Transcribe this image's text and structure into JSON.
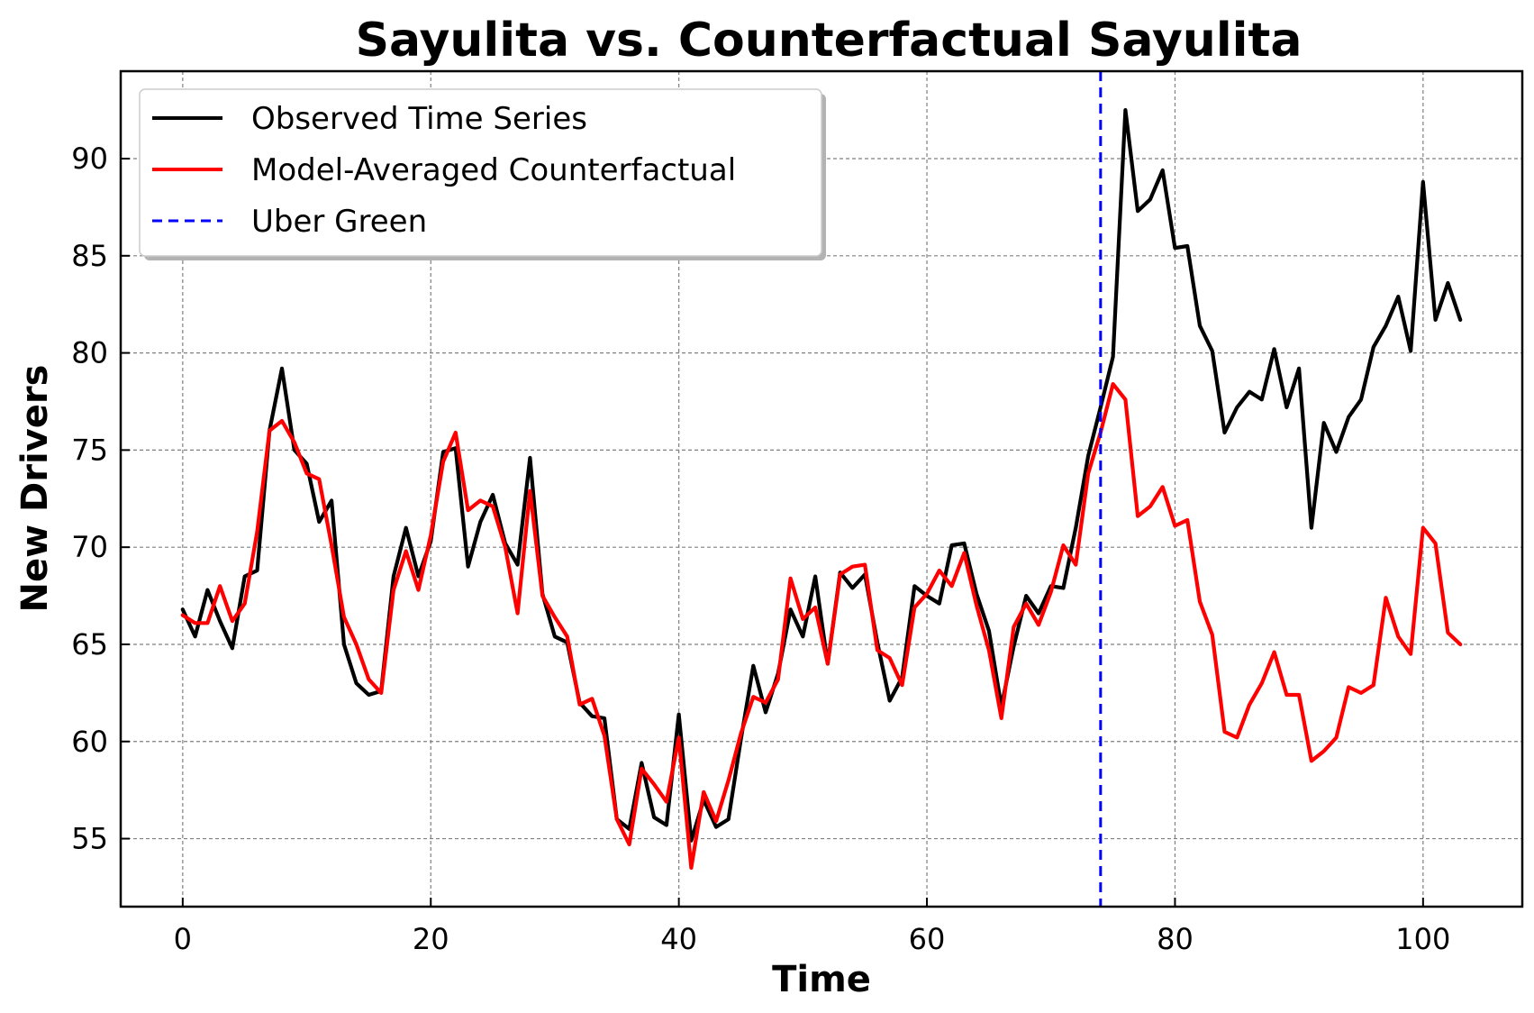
{
  "chart_data": {
    "type": "line",
    "title": "Sayulita vs. Counterfactual Sayulita",
    "xlabel": "Time",
    "ylabel": "New Drivers",
    "xlim": [
      -5,
      108
    ],
    "ylim": [
      51.5,
      94.5
    ],
    "xticks": [
      0,
      20,
      40,
      60,
      80,
      100
    ],
    "yticks": [
      55,
      60,
      65,
      70,
      75,
      80,
      85,
      90
    ],
    "grid": true,
    "legend_position": "upper-left",
    "series": [
      {
        "name": "Observed Time Series",
        "color": "#000000",
        "style": "solid",
        "x": [
          0,
          1,
          2,
          3,
          4,
          5,
          6,
          7,
          8,
          9,
          10,
          11,
          12,
          13,
          14,
          15,
          16,
          17,
          18,
          19,
          20,
          21,
          22,
          23,
          24,
          25,
          26,
          27,
          28,
          29,
          30,
          31,
          32,
          33,
          34,
          35,
          36,
          37,
          38,
          39,
          40,
          41,
          42,
          43,
          44,
          45,
          46,
          47,
          48,
          49,
          50,
          51,
          52,
          53,
          54,
          55,
          56,
          57,
          58,
          59,
          60,
          61,
          62,
          63,
          64,
          65,
          66,
          67,
          68,
          69,
          70,
          71,
          72,
          73,
          74,
          75,
          76,
          77,
          78,
          79,
          80,
          81,
          82,
          83,
          84,
          85,
          86,
          87,
          88,
          89,
          90,
          91,
          92,
          93,
          94,
          95,
          96,
          97,
          98,
          99,
          100,
          101,
          102,
          103
        ],
        "values": [
          66.8,
          65.4,
          67.8,
          66.2,
          64.8,
          68.5,
          68.8,
          76.0,
          79.2,
          75.0,
          74.3,
          71.3,
          72.4,
          65.0,
          63.0,
          62.4,
          62.6,
          68.5,
          71.0,
          68.5,
          70.3,
          74.9,
          75.1,
          69.0,
          71.3,
          72.7,
          70.2,
          69.1,
          74.6,
          67.6,
          65.4,
          65.1,
          62.0,
          61.3,
          61.2,
          56.0,
          55.5,
          58.9,
          56.1,
          55.7,
          61.4,
          54.9,
          57.0,
          55.6,
          56.0,
          60.1,
          63.9,
          61.5,
          63.5,
          66.8,
          65.4,
          68.5,
          64.0,
          68.7,
          67.9,
          68.6,
          65.1,
          62.1,
          63.3,
          68.0,
          67.5,
          67.1,
          70.1,
          70.2,
          67.6,
          65.7,
          61.8,
          64.9,
          67.5,
          66.6,
          68.0,
          67.9,
          71.0,
          74.7,
          77.2,
          79.8,
          92.5,
          87.3,
          87.9,
          89.4,
          85.4,
          85.5,
          81.4,
          80.1,
          75.9,
          77.2,
          78.0,
          77.6,
          80.2,
          77.2,
          79.2,
          71.0,
          76.4,
          74.9,
          76.7,
          77.6,
          80.3,
          81.4,
          82.9,
          80.1,
          88.8,
          81.7,
          83.6,
          81.7
        ]
      },
      {
        "name": "Model-Averaged Counterfactual",
        "color": "#ff0000",
        "style": "solid",
        "x": [
          0,
          1,
          2,
          3,
          4,
          5,
          6,
          7,
          8,
          9,
          10,
          11,
          12,
          13,
          14,
          15,
          16,
          17,
          18,
          19,
          20,
          21,
          22,
          23,
          24,
          25,
          26,
          27,
          28,
          29,
          30,
          31,
          32,
          33,
          34,
          35,
          36,
          37,
          38,
          39,
          40,
          41,
          42,
          43,
          44,
          45,
          46,
          47,
          48,
          49,
          50,
          51,
          52,
          53,
          54,
          55,
          56,
          57,
          58,
          59,
          60,
          61,
          62,
          63,
          64,
          65,
          66,
          67,
          68,
          69,
          70,
          71,
          72,
          73,
          74,
          75,
          76,
          77,
          78,
          79,
          80,
          81,
          82,
          83,
          84,
          85,
          86,
          87,
          88,
          89,
          90,
          91,
          92,
          93,
          94,
          95,
          96,
          97,
          98,
          99,
          100,
          101,
          102,
          103
        ],
        "values": [
          66.5,
          66.1,
          66.1,
          68.0,
          66.2,
          67.1,
          70.8,
          76.0,
          76.5,
          75.4,
          73.8,
          73.5,
          70.1,
          66.4,
          65.0,
          63.2,
          62.5,
          67.8,
          69.8,
          67.8,
          70.6,
          74.4,
          75.9,
          71.9,
          72.4,
          72.1,
          70.0,
          66.6,
          72.9,
          67.5,
          66.4,
          65.4,
          61.9,
          62.2,
          60.3,
          56.0,
          54.7,
          58.6,
          57.8,
          56.9,
          60.2,
          53.5,
          57.4,
          55.9,
          58.0,
          60.4,
          62.3,
          62.0,
          63.2,
          68.4,
          66.3,
          66.9,
          64.0,
          68.6,
          69.0,
          69.1,
          64.7,
          64.3,
          62.9,
          66.9,
          67.6,
          68.8,
          68.0,
          69.7,
          67.0,
          64.7,
          61.2,
          65.9,
          67.1,
          66.0,
          67.7,
          70.1,
          69.1,
          73.8,
          75.9,
          78.4,
          77.6,
          71.6,
          72.1,
          73.1,
          71.1,
          71.4,
          67.2,
          65.5,
          60.5,
          60.2,
          61.9,
          63.0,
          64.6,
          62.4,
          62.4,
          59.0,
          59.5,
          60.2,
          62.8,
          62.5,
          62.9,
          67.4,
          65.4,
          64.5,
          71.0,
          70.2,
          65.6,
          65.0
        ]
      }
    ],
    "vlines": [
      {
        "name": "Uber Green",
        "x": 74,
        "color": "#0000ff",
        "style": "dashed"
      }
    ]
  }
}
